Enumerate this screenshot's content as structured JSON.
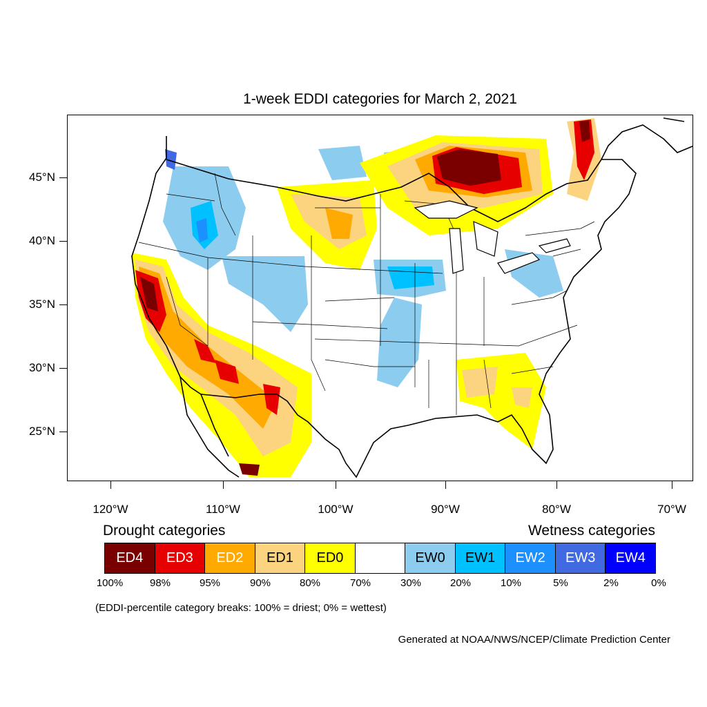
{
  "title": "1-week EDDI categories for March 2, 2021",
  "lat_labels": [
    "45°N",
    "40°N",
    "35°N",
    "30°N",
    "25°N"
  ],
  "lon_labels": [
    "120°W",
    "110°W",
    "100°W",
    "90°W",
    "80°W",
    "70°W"
  ],
  "legend": {
    "drought_heading": "Drought categories",
    "wetness_heading": "Wetness categories",
    "categories": [
      {
        "label": "ED4",
        "color": "#7a0000",
        "text_color": "#ffffff"
      },
      {
        "label": "ED3",
        "color": "#e60000",
        "text_color": "#ffffff"
      },
      {
        "label": "ED2",
        "color": "#ffaa00",
        "text_color": "#ffffff"
      },
      {
        "label": "ED1",
        "color": "#fcd37f",
        "text_color": "#000000"
      },
      {
        "label": "ED0",
        "color": "#ffff00",
        "text_color": "#000000"
      },
      {
        "label": "",
        "color": "#ffffff",
        "text_color": "#000000"
      },
      {
        "label": "EW0",
        "color": "#8ccdef",
        "text_color": "#000000"
      },
      {
        "label": "EW1",
        "color": "#00c1ff",
        "text_color": "#000000"
      },
      {
        "label": "EW2",
        "color": "#1d90ff",
        "text_color": "#ffffff"
      },
      {
        "label": "EW3",
        "color": "#4169e1",
        "text_color": "#ffffff"
      },
      {
        "label": "EW4",
        "color": "#0000ff",
        "text_color": "#ffffff"
      }
    ],
    "percentiles": [
      "100%",
      "98%",
      "95%",
      "90%",
      "80%",
      "70%",
      "30%",
      "20%",
      "10%",
      "5%",
      "2%",
      "0%"
    ],
    "note": "(EDDI-percentile category breaks: 100% = driest; 0% = wettest)"
  },
  "credit": "Generated at NOAA/NWS/NCEP/Climate Prediction Center"
}
